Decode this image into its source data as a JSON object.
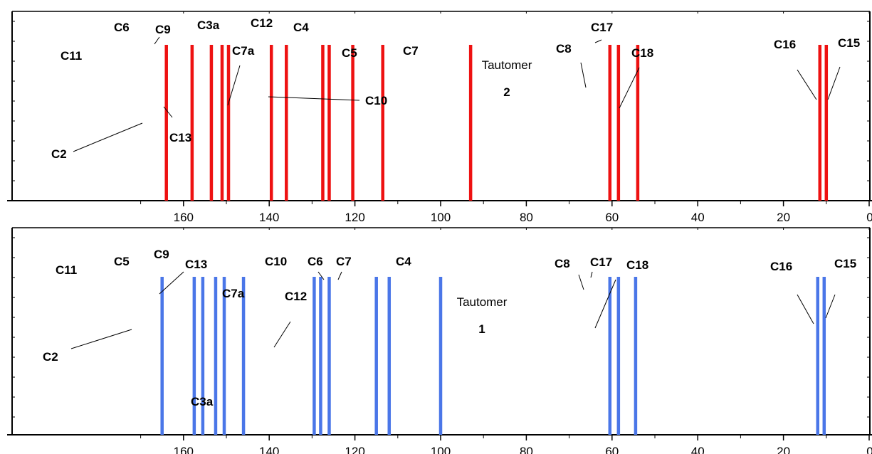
{
  "chart_data": [
    {
      "type": "bar",
      "title": "Tautomer",
      "subtitle": "2",
      "color": "#ee1111",
      "xlim": [
        180,
        0
      ],
      "x_ticks": [
        160,
        140,
        120,
        100,
        80,
        60,
        40,
        20,
        0
      ],
      "series": [
        {
          "x": [
            164,
            158,
            153.5,
            151,
            149.5,
            139.5,
            136,
            127.5,
            126,
            120.5,
            113.5,
            93,
            60.5,
            58.5,
            54,
            11.5,
            10
          ]
        }
      ],
      "labels": [
        "C11",
        "C6",
        "C9",
        "C3a",
        "C12",
        "C4",
        "C7a",
        "C5",
        "C7",
        "C8",
        "C17",
        "C18",
        "C16",
        "C15",
        "C2",
        "C13",
        "C10"
      ]
    },
    {
      "type": "bar",
      "title": "Tautomer",
      "subtitle": "1",
      "color": "#4a76e8",
      "xlim": [
        180,
        0
      ],
      "x_ticks": [
        160,
        140,
        120,
        100,
        80,
        60,
        40,
        20,
        0
      ],
      "series": [
        {
          "x": [
            165,
            157.5,
            155.5,
            152.5,
            150.5,
            146,
            129.5,
            128,
            126,
            115,
            112,
            100,
            60.5,
            58.5,
            54.5,
            12,
            10.5
          ]
        }
      ],
      "labels": [
        "C11",
        "C5",
        "C9",
        "C13",
        "C10",
        "C6",
        "C7",
        "C4",
        "C7a",
        "C12",
        "C2",
        "C3a",
        "C8",
        "C17",
        "C18",
        "C16",
        "C15"
      ]
    }
  ]
}
